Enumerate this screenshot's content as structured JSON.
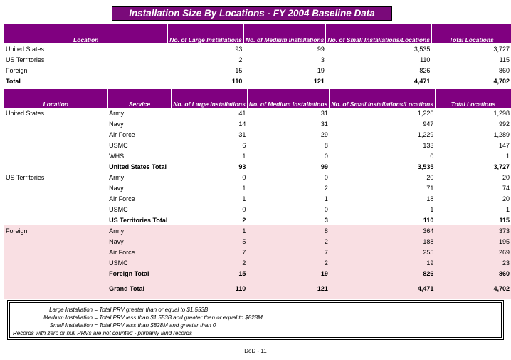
{
  "title": "Installation Size By Locations - FY 2004 Baseline Data",
  "table1": {
    "headers": [
      "Location",
      "No. of Large Installations",
      "No. of Medium Installations",
      "No. of Small Installations/Locations",
      "Total Locations"
    ],
    "rows": [
      [
        "United States",
        "93",
        "99",
        "3,535",
        "3,727"
      ],
      [
        "US Territories",
        "2",
        "3",
        "110",
        "115"
      ],
      [
        "Foreign",
        "15",
        "19",
        "826",
        "860"
      ]
    ],
    "total": [
      "Total",
      "110",
      "121",
      "4,471",
      "4,702"
    ]
  },
  "table2": {
    "headers": [
      "Location",
      "Service",
      "No. of Large Installations",
      "No. of Medium Installations",
      "No. of Small Installations/Locations",
      "Total Locations"
    ],
    "groups": [
      {
        "location": "United States",
        "rows": [
          [
            "Army",
            "41",
            "31",
            "1,226",
            "1,298"
          ],
          [
            "Navy",
            "14",
            "31",
            "947",
            "992"
          ],
          [
            "Air Force",
            "31",
            "29",
            "1,229",
            "1,289"
          ],
          [
            "USMC",
            "6",
            "8",
            "133",
            "147"
          ],
          [
            "WHS",
            "1",
            "0",
            "0",
            "1"
          ]
        ],
        "total": [
          "United States Total",
          "93",
          "99",
          "3,535",
          "3,727"
        ]
      },
      {
        "location": "US Territories",
        "rows": [
          [
            "Army",
            "0",
            "0",
            "20",
            "20"
          ],
          [
            "Navy",
            "1",
            "2",
            "71",
            "74"
          ],
          [
            "Air Force",
            "1",
            "1",
            "18",
            "20"
          ],
          [
            "USMC",
            "0",
            "0",
            "1",
            "1"
          ]
        ],
        "total": [
          "US Territories Total",
          "2",
          "3",
          "110",
          "115"
        ]
      },
      {
        "location": "Foreign",
        "rows": [
          [
            "Army",
            "1",
            "8",
            "364",
            "373"
          ],
          [
            "Navy",
            "5",
            "2",
            "188",
            "195"
          ],
          [
            "Air Force",
            "7",
            "7",
            "255",
            "269"
          ],
          [
            "USMC",
            "2",
            "2",
            "19",
            "23"
          ]
        ],
        "total": [
          "Foreign Total",
          "15",
          "19",
          "826",
          "860"
        ]
      }
    ],
    "grand_total": [
      "Grand Total",
      "110",
      "121",
      "4,471",
      "4,702"
    ]
  },
  "legend": [
    {
      "label": "Large Installation =",
      "text": "Total PRV greater than or equal to $1.553B"
    },
    {
      "label": "Medium Installation =",
      "text": "Total PRV less than $1.553B and greater than or equal to $828M"
    },
    {
      "label": "Small Installation =",
      "text": "Total PRV less than $828M and greater than 0"
    }
  ],
  "legend_note": "Records with zero or null PRVs are not counted - primarily land records",
  "footer": "DoD - 11",
  "colors": {
    "header": "#800080",
    "foreign_band": "#f9dfe3"
  }
}
